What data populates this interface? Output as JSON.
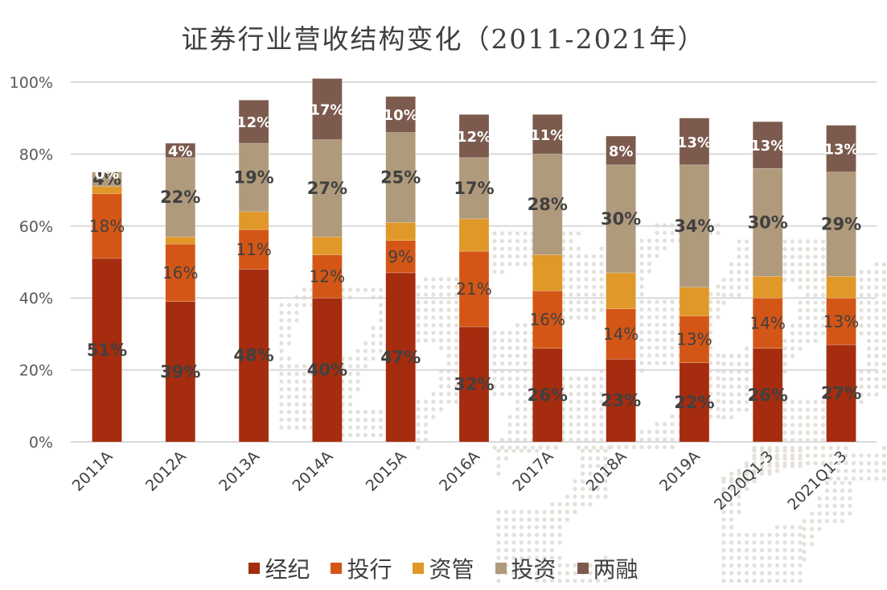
{
  "chart_data": {
    "type": "bar",
    "stacked": true,
    "title": "证券行业营收结构变化（2011-2021年）",
    "xlabel": "",
    "ylabel": "",
    "ylim": [
      0,
      100
    ],
    "yticks": [
      "0%",
      "20%",
      "40%",
      "60%",
      "80%",
      "100%"
    ],
    "grid": true,
    "legend_position": "bottom",
    "categories": [
      "2011A",
      "2012A",
      "2013A",
      "2014A",
      "2015A",
      "2016A",
      "2017A",
      "2018A",
      "2019A",
      "2020Q1-3",
      "2021Q1-3"
    ],
    "series": [
      {
        "name": "经纪",
        "color": "#A52C0E",
        "values": [
          51,
          39,
          48,
          40,
          47,
          32,
          26,
          23,
          22,
          26,
          27
        ],
        "labels": [
          "51%",
          "39%",
          "48%",
          "40%",
          "47%",
          "32%",
          "26%",
          "23%",
          "22%",
          "26%",
          "27%"
        ],
        "label_style": "bold"
      },
      {
        "name": "投行",
        "color": "#D45616",
        "values": [
          18,
          16,
          11,
          12,
          9,
          21,
          16,
          14,
          13,
          14,
          13
        ],
        "labels": [
          "18%",
          "16%",
          "11%",
          "12%",
          "9%",
          "21%",
          "16%",
          "14%",
          "13%",
          "14%",
          "13%"
        ],
        "label_style": "light"
      },
      {
        "name": "资管",
        "color": "#E09828",
        "values": [
          2,
          2,
          5,
          5,
          5,
          9,
          10,
          10,
          8,
          6,
          6
        ],
        "labels": null,
        "label_style": "none"
      },
      {
        "name": "投资",
        "color": "#B09A7C",
        "values": [
          4,
          22,
          19,
          27,
          25,
          17,
          28,
          30,
          34,
          30,
          29
        ],
        "labels": [
          "4%",
          "22%",
          "19%",
          "27%",
          "25%",
          "17%",
          "28%",
          "30%",
          "34%",
          "30%",
          "29%"
        ],
        "label_style": "bold"
      },
      {
        "name": "两融",
        "color": "#7C5B4E",
        "values": [
          0,
          4,
          12,
          17,
          10,
          12,
          11,
          8,
          13,
          13,
          13
        ],
        "labels": [
          "0%",
          "4%",
          "12%",
          "17%",
          "10%",
          "12%",
          "11%",
          "8%",
          "13%",
          "13%",
          "13%"
        ],
        "label_style": "white"
      }
    ]
  }
}
